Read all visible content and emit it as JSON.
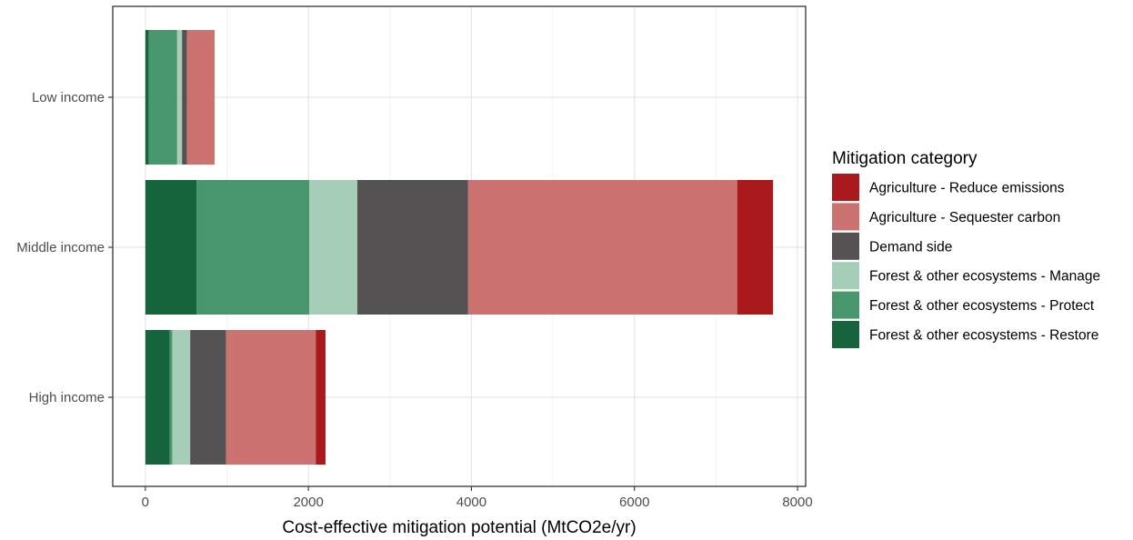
{
  "chart_data": {
    "type": "bar",
    "orientation": "horizontal",
    "stacked": true,
    "xlabel": "Cost-effective mitigation potential (MtCO2e/yr)",
    "ylabel": "",
    "xlim": [
      -400,
      8100
    ],
    "xticks": [
      0,
      2000,
      4000,
      6000,
      8000
    ],
    "grid": true,
    "legend_title": "Mitigation category",
    "legend_position": "right",
    "categories": [
      "Low income",
      "Middle income",
      "High income"
    ],
    "series": [
      {
        "name": "Forest & other ecosystems - Restore",
        "color": "#16643b",
        "values": [
          40,
          630,
          300
        ]
      },
      {
        "name": "Forest & other ecosystems - Protect",
        "color": "#48966c",
        "values": [
          350,
          1380,
          30
        ]
      },
      {
        "name": "Forest & other ecosystems - Manage",
        "color": "#a6cdb8",
        "values": [
          60,
          590,
          220
        ]
      },
      {
        "name": "Demand side",
        "color": "#545252",
        "values": [
          60,
          1360,
          440
        ]
      },
      {
        "name": "Agriculture - Sequester carbon",
        "color": "#cc7270",
        "values": [
          340,
          3300,
          1100
        ]
      },
      {
        "name": "Agriculture - Reduce emissions",
        "color": "#aa1a1c",
        "values": [
          0,
          440,
          120
        ]
      }
    ],
    "legend_order": [
      "Agriculture - Reduce emissions",
      "Agriculture - Sequester carbon",
      "Demand side",
      "Forest & other ecosystems - Manage",
      "Forest & other ecosystems - Protect",
      "Forest & other ecosystems - Restore"
    ]
  }
}
